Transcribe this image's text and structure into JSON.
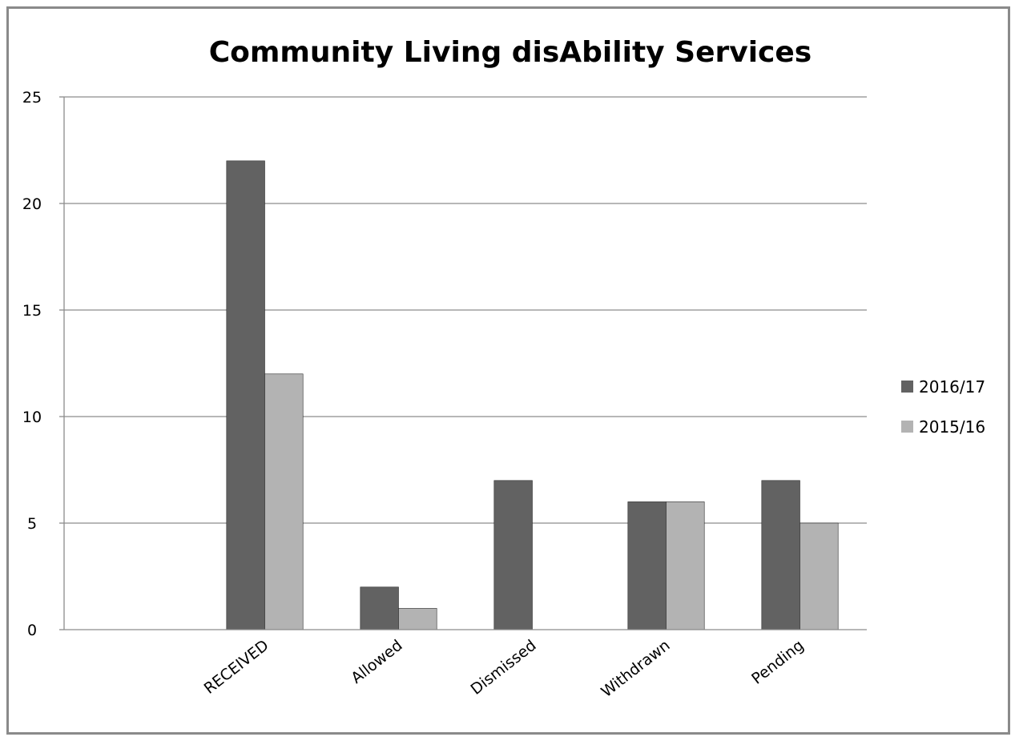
{
  "chart_data": {
    "type": "bar",
    "title": "Community Living disAbility Services",
    "xlabel": "",
    "ylabel": "",
    "categories": [
      "",
      "RECEIVED",
      "Allowed",
      "Dismissed",
      "Withdrawn",
      "Pending"
    ],
    "series": [
      {
        "name": "2016/17",
        "color": "#626262",
        "values": [
          null,
          22,
          2,
          7,
          6,
          7
        ]
      },
      {
        "name": "2015/16",
        "color": "#b3b3b3",
        "values": [
          null,
          12,
          1,
          null,
          6,
          5
        ]
      }
    ],
    "ylim": [
      0,
      25
    ],
    "yticks": [
      0,
      5,
      10,
      15,
      20,
      25
    ],
    "grid": true,
    "legend": "right"
  }
}
